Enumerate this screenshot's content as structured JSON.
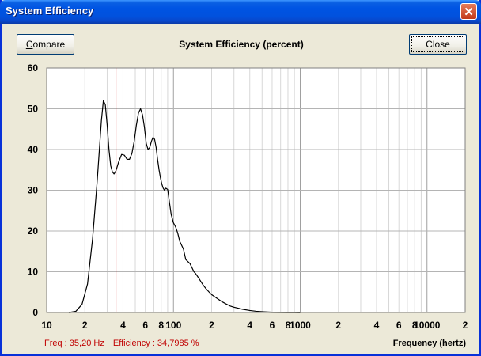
{
  "window": {
    "title": "System Efficiency",
    "close_glyph": "✕"
  },
  "toolbar": {
    "compare_label_first": "C",
    "compare_label_rest": "ompare",
    "close_label": "Close"
  },
  "readout": {
    "freq": "Freq : 35,20 Hz",
    "efficiency": "Efficiency : 34,7985 %"
  },
  "chart_data": {
    "type": "line",
    "title": "System Efficiency (percent)",
    "xlabel": "Frequency (hertz)",
    "ylabel": "",
    "x_scale": "log",
    "xlim": [
      10,
      20000
    ],
    "ylim": [
      0,
      60
    ],
    "y_ticks": [
      0,
      10,
      20,
      30,
      40,
      50,
      60
    ],
    "x_tick_labels": [
      {
        "x": 10,
        "label": "10"
      },
      {
        "x": 20,
        "label": "2"
      },
      {
        "x": 40,
        "label": "4"
      },
      {
        "x": 60,
        "label": "6"
      },
      {
        "x": 80,
        "label": "8"
      },
      {
        "x": 100,
        "label": "100"
      },
      {
        "x": 200,
        "label": "2"
      },
      {
        "x": 400,
        "label": "4"
      },
      {
        "x": 600,
        "label": "6"
      },
      {
        "x": 800,
        "label": "8"
      },
      {
        "x": 1000,
        "label": "1000"
      },
      {
        "x": 2000,
        "label": "2"
      },
      {
        "x": 4000,
        "label": "4"
      },
      {
        "x": 6000,
        "label": "6"
      },
      {
        "x": 8000,
        "label": "8"
      },
      {
        "x": 10000,
        "label": "10000"
      },
      {
        "x": 20000,
        "label": "2"
      }
    ],
    "grid": true,
    "cursor": {
      "x": 35.2,
      "y": 34.7985,
      "color": "#cc0000"
    },
    "series": [
      {
        "color": "#000000",
        "x": [
          15,
          17,
          19,
          21,
          23,
          25,
          27,
          28,
          29,
          30,
          31,
          32,
          33,
          34,
          35.2,
          37,
          39,
          41,
          43,
          45,
          47,
          49,
          51,
          53,
          55,
          57,
          59,
          61,
          63,
          65,
          67,
          69,
          71,
          73,
          75,
          77,
          79,
          81,
          83,
          85,
          87,
          90,
          93,
          96,
          100,
          104,
          108,
          112,
          116,
          120,
          125,
          130,
          135,
          140,
          145,
          150,
          160,
          170,
          180,
          190,
          200,
          220,
          240,
          260,
          280,
          300,
          350,
          400,
          450,
          500,
          600,
          700,
          800,
          900,
          1000
        ],
        "y": [
          0,
          0.3,
          2,
          7,
          18,
          32,
          47,
          52,
          51,
          46,
          40,
          36,
          34.5,
          34,
          34.8,
          37,
          38.8,
          38.6,
          37.6,
          37.6,
          39,
          42,
          46,
          49,
          50,
          48.5,
          45.5,
          41.5,
          40,
          40.5,
          42,
          43,
          42.5,
          40.5,
          37.5,
          35,
          33,
          31.5,
          30.5,
          30,
          30.5,
          30.2,
          27,
          24,
          22,
          21,
          19.5,
          17.5,
          16.5,
          15.5,
          13,
          12.5,
          12,
          11,
          10,
          9.5,
          8.2,
          6.9,
          5.9,
          5.1,
          4.4,
          3.5,
          2.7,
          2.1,
          1.6,
          1.3,
          0.8,
          0.5,
          0.3,
          0.2,
          0.08,
          0.04,
          0.02,
          0.01,
          0
        ]
      }
    ]
  }
}
